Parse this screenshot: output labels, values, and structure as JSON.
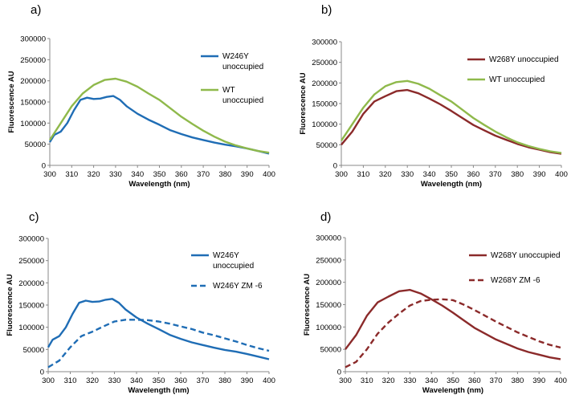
{
  "chart_data": [
    {
      "type": "line",
      "panel": "a)",
      "xlabel": "Wavelength (nm)",
      "ylabel": "Fluorescence AU",
      "xlim": [
        300,
        400
      ],
      "ylim": [
        0,
        300000
      ],
      "xticks": [
        300,
        310,
        320,
        330,
        340,
        350,
        360,
        370,
        380,
        390,
        400
      ],
      "yticks": [
        0,
        50000,
        100000,
        150000,
        200000,
        250000,
        300000
      ],
      "legend_position": "top-right",
      "series": [
        {
          "name": "W246Y unoccupied",
          "legend_lines": [
            "W246Y",
            "unoccupied"
          ],
          "color": "#1f6db5",
          "dashed": false,
          "x": [
            300,
            302,
            305,
            308,
            311,
            314,
            317,
            320,
            323,
            326,
            329,
            332,
            335,
            340,
            345,
            350,
            355,
            360,
            365,
            370,
            375,
            380,
            385,
            390,
            395,
            400
          ],
          "y": [
            55000,
            72000,
            80000,
            100000,
            130000,
            155000,
            160000,
            157000,
            158000,
            162000,
            164000,
            155000,
            140000,
            122000,
            108000,
            96000,
            83000,
            74000,
            66000,
            60000,
            54000,
            49000,
            45000,
            40000,
            34000,
            28000
          ]
        },
        {
          "name": "WT unoccupied",
          "legend_lines": [
            "WT",
            "unoccupied"
          ],
          "color": "#8fb94b",
          "dashed": false,
          "x": [
            300,
            305,
            310,
            315,
            320,
            325,
            330,
            335,
            340,
            345,
            350,
            355,
            360,
            365,
            370,
            375,
            380,
            385,
            390,
            395,
            400
          ],
          "y": [
            60000,
            100000,
            140000,
            170000,
            190000,
            202000,
            205000,
            198000,
            186000,
            170000,
            155000,
            135000,
            115000,
            98000,
            82000,
            68000,
            56000,
            47000,
            40000,
            34000,
            30000
          ]
        }
      ]
    },
    {
      "type": "line",
      "panel": "b)",
      "xlabel": "Wavelength (nm)",
      "ylabel": "Fluorescence AU",
      "xlim": [
        300,
        400
      ],
      "ylim": [
        0,
        300000
      ],
      "xticks": [
        300,
        310,
        320,
        330,
        340,
        350,
        360,
        370,
        380,
        390,
        400
      ],
      "yticks": [
        0,
        50000,
        100000,
        150000,
        200000,
        250000,
        300000
      ],
      "legend_position": "top-right",
      "series": [
        {
          "name": "W268Y unoccupied",
          "legend_lines": [
            "W268Y unoccupied"
          ],
          "color": "#8b2a2a",
          "dashed": false,
          "x": [
            300,
            305,
            310,
            315,
            320,
            325,
            330,
            335,
            340,
            345,
            350,
            355,
            360,
            365,
            370,
            375,
            380,
            385,
            390,
            395,
            400
          ],
          "y": [
            50000,
            82000,
            125000,
            155000,
            168000,
            180000,
            183000,
            175000,
            162000,
            148000,
            132000,
            115000,
            98000,
            85000,
            72000,
            62000,
            52000,
            44000,
            38000,
            32000,
            28000
          ]
        },
        {
          "name": "WT unoccupied",
          "legend_lines": [
            "WT unoccupied"
          ],
          "color": "#8fb94b",
          "dashed": false,
          "x": [
            300,
            305,
            310,
            315,
            320,
            325,
            330,
            335,
            340,
            345,
            350,
            355,
            360,
            365,
            370,
            375,
            380,
            385,
            390,
            395,
            400
          ],
          "y": [
            60000,
            100000,
            140000,
            172000,
            192000,
            202000,
            205000,
            198000,
            186000,
            170000,
            155000,
            135000,
            115000,
            98000,
            82000,
            68000,
            56000,
            47000,
            40000,
            34000,
            30000
          ]
        }
      ]
    },
    {
      "type": "line",
      "panel": "c)",
      "xlabel": "Wavelength (nm)",
      "ylabel": "Fluorescence AU",
      "xlim": [
        300,
        400
      ],
      "ylim": [
        0,
        300000
      ],
      "xticks": [
        300,
        310,
        320,
        330,
        340,
        350,
        360,
        370,
        380,
        390,
        400
      ],
      "yticks": [
        0,
        50000,
        100000,
        150000,
        200000,
        250000,
        300000
      ],
      "legend_position": "top-right",
      "series": [
        {
          "name": "W246Y unoccupied",
          "legend_lines": [
            "W246Y",
            "unoccupied"
          ],
          "color": "#1f6db5",
          "dashed": false,
          "x": [
            300,
            302,
            305,
            308,
            311,
            314,
            317,
            320,
            323,
            326,
            329,
            332,
            335,
            340,
            345,
            350,
            355,
            360,
            365,
            370,
            375,
            380,
            385,
            390,
            395,
            400
          ],
          "y": [
            55000,
            72000,
            80000,
            100000,
            130000,
            155000,
            160000,
            157000,
            158000,
            162000,
            164000,
            155000,
            140000,
            122000,
            108000,
            96000,
            83000,
            74000,
            66000,
            60000,
            54000,
            49000,
            45000,
            40000,
            34000,
            28000
          ]
        },
        {
          "name": "W246Y ZM -6",
          "legend_lines": [
            "W246Y ZM -6"
          ],
          "color": "#1f6db5",
          "dashed": true,
          "x": [
            300,
            305,
            310,
            315,
            320,
            325,
            330,
            335,
            340,
            345,
            350,
            355,
            360,
            365,
            370,
            375,
            380,
            385,
            390,
            395,
            400
          ],
          "y": [
            10000,
            25000,
            55000,
            80000,
            90000,
            102000,
            113000,
            117000,
            117000,
            116000,
            113000,
            108000,
            102000,
            96000,
            88000,
            82000,
            75000,
            68000,
            60000,
            53000,
            47000
          ]
        }
      ]
    },
    {
      "type": "line",
      "panel": "d)",
      "xlabel": "Wavelength (nm)",
      "ylabel": "Fluorescence AU",
      "xlim": [
        300,
        400
      ],
      "ylim": [
        0,
        300000
      ],
      "xticks": [
        300,
        310,
        320,
        330,
        340,
        350,
        360,
        370,
        380,
        390,
        400
      ],
      "yticks": [
        0,
        50000,
        100000,
        150000,
        200000,
        250000,
        300000
      ],
      "legend_position": "top-right",
      "series": [
        {
          "name": "W268Y unoccupied",
          "legend_lines": [
            "W268Y unoccupied"
          ],
          "color": "#8b2a2a",
          "dashed": false,
          "x": [
            300,
            305,
            310,
            315,
            320,
            325,
            330,
            335,
            340,
            345,
            350,
            355,
            360,
            365,
            370,
            375,
            380,
            385,
            390,
            395,
            400
          ],
          "y": [
            50000,
            82000,
            125000,
            155000,
            168000,
            180000,
            183000,
            175000,
            162000,
            148000,
            132000,
            115000,
            98000,
            85000,
            72000,
            62000,
            52000,
            44000,
            38000,
            32000,
            28000
          ]
        },
        {
          "name": "W268Y ZM -6",
          "legend_lines": [
            "W268Y ZM -6"
          ],
          "color": "#8b2a2a",
          "dashed": true,
          "x": [
            300,
            305,
            310,
            315,
            320,
            325,
            330,
            335,
            340,
            345,
            350,
            355,
            360,
            365,
            370,
            375,
            380,
            385,
            390,
            395,
            400
          ],
          "y": [
            10000,
            22000,
            50000,
            85000,
            110000,
            130000,
            148000,
            158000,
            161000,
            162000,
            160000,
            150000,
            138000,
            125000,
            112000,
            100000,
            88000,
            78000,
            68000,
            60000,
            54000
          ]
        }
      ]
    }
  ]
}
